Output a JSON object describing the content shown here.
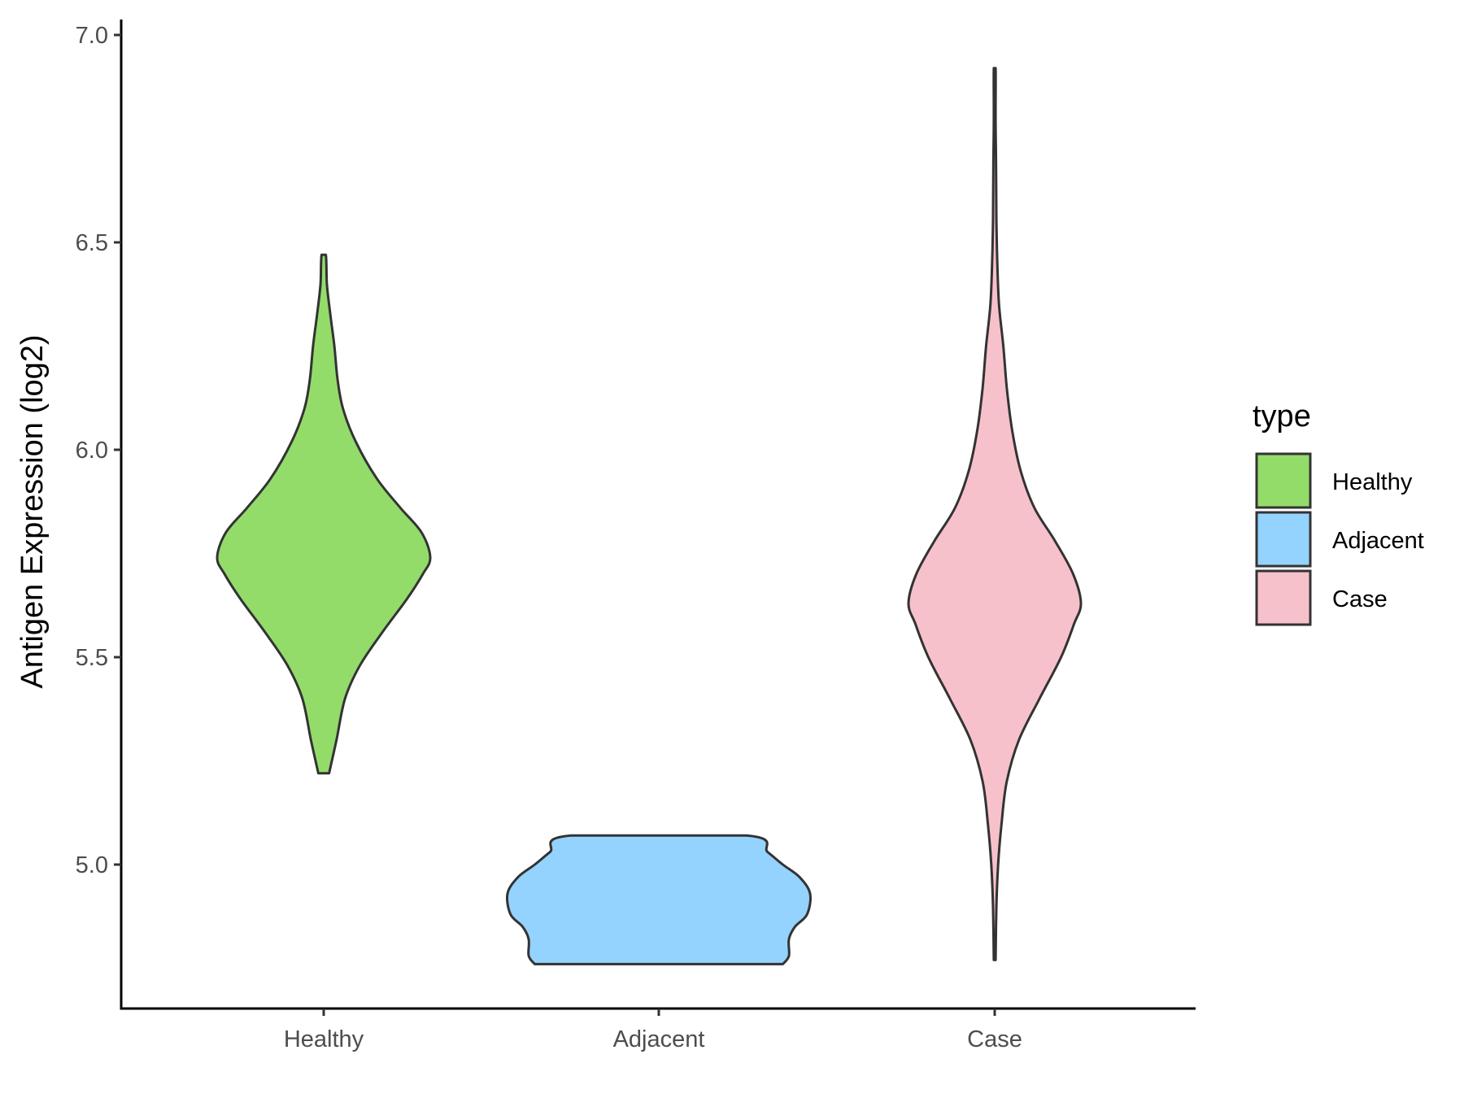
{
  "chart_data": {
    "type": "violin",
    "title": "",
    "xlabel": "",
    "ylabel": "Antigen Expression (log2)",
    "ylim": [
      4.65,
      7.04
    ],
    "yticks": [
      5.0,
      5.5,
      6.0,
      6.5,
      7.0
    ],
    "ytick_labels": [
      "5.0",
      "5.5",
      "6.0",
      "6.5",
      "7.0"
    ],
    "categories": [
      "Healthy",
      "Adjacent",
      "Case"
    ],
    "grid": false,
    "legend": {
      "title": "type",
      "position": "right",
      "items": [
        {
          "label": "Healthy",
          "color": "#93dc6a"
        },
        {
          "label": "Adjacent",
          "color": "#94d3fd"
        },
        {
          "label": "Case",
          "color": "#f7c1cb"
        }
      ]
    },
    "outline_color": "#333333",
    "series": [
      {
        "category": "Healthy",
        "color": "#93dc6a",
        "min": 5.22,
        "max": 6.47,
        "profile": [
          [
            5.22,
            0.05
          ],
          [
            5.3,
            0.12
          ],
          [
            5.4,
            0.2
          ],
          [
            5.48,
            0.34
          ],
          [
            5.56,
            0.55
          ],
          [
            5.64,
            0.78
          ],
          [
            5.7,
            0.93
          ],
          [
            5.74,
            1.0
          ],
          [
            5.8,
            0.92
          ],
          [
            5.86,
            0.72
          ],
          [
            5.93,
            0.5
          ],
          [
            6.02,
            0.3
          ],
          [
            6.1,
            0.18
          ],
          [
            6.17,
            0.13
          ],
          [
            6.25,
            0.1
          ],
          [
            6.33,
            0.06
          ],
          [
            6.4,
            0.03
          ],
          [
            6.47,
            0.02
          ]
        ]
      },
      {
        "category": "Adjacent",
        "color": "#94d3fd",
        "min": 4.76,
        "max": 5.07,
        "profile": [
          [
            4.76,
            0.82
          ],
          [
            4.78,
            0.86
          ],
          [
            4.82,
            0.86
          ],
          [
            4.85,
            0.9
          ],
          [
            4.88,
            0.98
          ],
          [
            4.93,
            1.0
          ],
          [
            4.97,
            0.93
          ],
          [
            5.0,
            0.82
          ],
          [
            5.03,
            0.72
          ],
          [
            5.07,
            0.58
          ]
        ]
      },
      {
        "category": "Case",
        "color": "#f7c1cb",
        "min": 4.77,
        "max": 6.92,
        "profile": [
          [
            4.77,
            0.01
          ],
          [
            4.9,
            0.02
          ],
          [
            5.0,
            0.04
          ],
          [
            5.1,
            0.08
          ],
          [
            5.2,
            0.14
          ],
          [
            5.3,
            0.28
          ],
          [
            5.4,
            0.52
          ],
          [
            5.5,
            0.77
          ],
          [
            5.58,
            0.92
          ],
          [
            5.63,
            1.0
          ],
          [
            5.7,
            0.91
          ],
          [
            5.78,
            0.7
          ],
          [
            5.86,
            0.46
          ],
          [
            5.95,
            0.3
          ],
          [
            6.05,
            0.2
          ],
          [
            6.15,
            0.14
          ],
          [
            6.25,
            0.1
          ],
          [
            6.35,
            0.05
          ],
          [
            6.45,
            0.03
          ],
          [
            6.55,
            0.02
          ],
          [
            6.7,
            0.015
          ],
          [
            6.8,
            0.01
          ],
          [
            6.92,
            0.01
          ]
        ]
      }
    ]
  }
}
